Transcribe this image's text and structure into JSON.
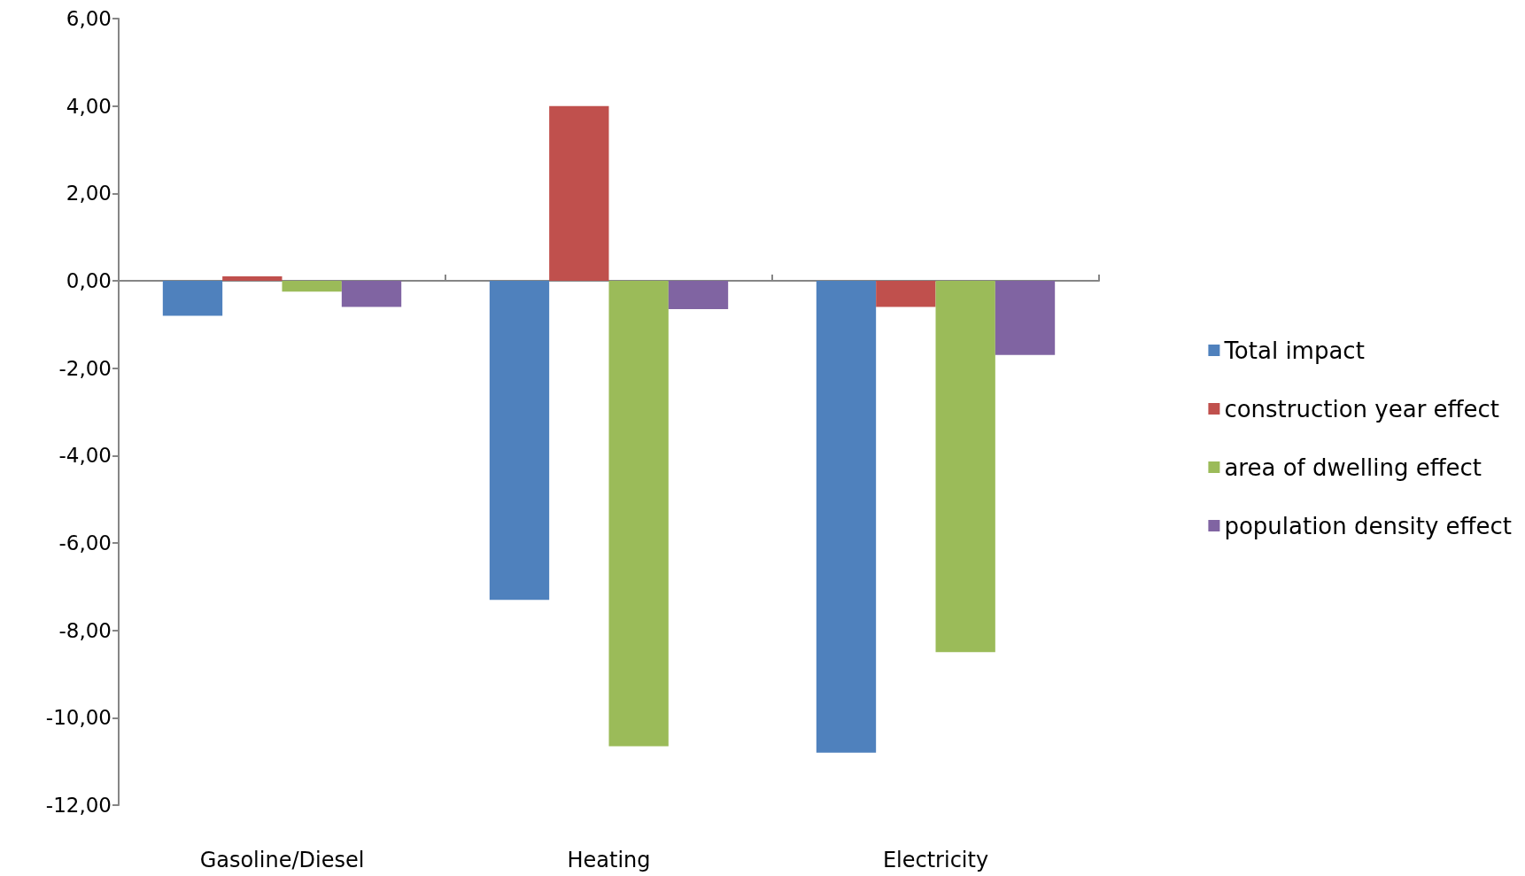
{
  "chart_data": {
    "type": "bar",
    "categories": [
      "Gasoline/Diesel",
      "Heating",
      "Electricity"
    ],
    "series": [
      {
        "name": "Total impact",
        "color": "#4f81bd",
        "values": [
          -0.8,
          -7.3,
          -10.8
        ]
      },
      {
        "name": "construction year effect",
        "color": "#c0504d",
        "values": [
          0.1,
          4.0,
          -0.6
        ]
      },
      {
        "name": "area of dwelling effect",
        "color": "#9bbb59",
        "values": [
          -0.25,
          -10.65,
          -8.5
        ]
      },
      {
        "name": "population density effect",
        "color": "#8064a2",
        "values": [
          -0.6,
          -0.65,
          -1.7
        ]
      }
    ],
    "ylim": [
      -12,
      6
    ],
    "yticks": [
      {
        "value": -12,
        "label": "-12,00"
      },
      {
        "value": -10,
        "label": "-10,00"
      },
      {
        "value": -8,
        "label": "-8,00"
      },
      {
        "value": -6,
        "label": "-6,00"
      },
      {
        "value": -4,
        "label": "-4,00"
      },
      {
        "value": -2,
        "label": "-2,00"
      },
      {
        "value": 0,
        "label": "0,00"
      },
      {
        "value": 2,
        "label": "2,00"
      },
      {
        "value": 4,
        "label": "4,00"
      },
      {
        "value": 6,
        "label": "6,00"
      }
    ],
    "legend": "right"
  }
}
